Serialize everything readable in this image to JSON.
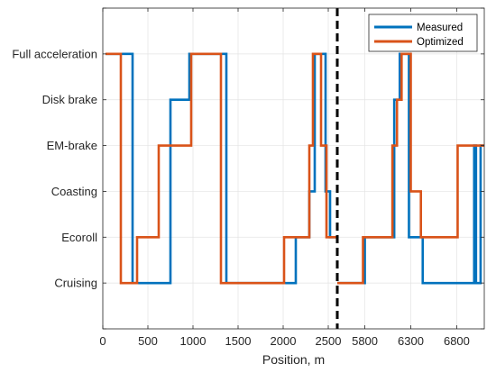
{
  "chart_data": {
    "type": "line",
    "style": "step",
    "xlabel": "Position, m",
    "ylabel": "",
    "grid": true,
    "legend_position": "top-right",
    "x_axis_break": {
      "at_data": 2600,
      "style": "dashed-vertical-line",
      "color": "#000000",
      "resumes_at_data": 5500,
      "resumes_tick_value": 5800
    },
    "xticks": [
      "0",
      "500",
      "1000",
      "1500",
      "2000",
      "2500",
      "5800",
      "6300",
      "6800"
    ],
    "ycategories": [
      "Cruising",
      "Ecoroll",
      "Coasting",
      "EM-brake",
      "Disk brake",
      "Full acceleration"
    ],
    "ylim": [
      -1,
      6
    ],
    "segments": [
      {
        "xlim": [
          0,
          2600
        ]
      },
      {
        "xlim": [
          5500,
          7100
        ]
      }
    ],
    "series": [
      {
        "name": "Measured",
        "color": "#0072BD",
        "points": [
          [
            30,
            5
          ],
          [
            330,
            5
          ],
          [
            330,
            0
          ],
          [
            750,
            0
          ],
          [
            750,
            4
          ],
          [
            960,
            4
          ],
          [
            960,
            5
          ],
          [
            1370,
            5
          ],
          [
            1370,
            0
          ],
          [
            2140,
            0
          ],
          [
            2140,
            1
          ],
          [
            2290,
            1
          ],
          [
            2290,
            2
          ],
          [
            2350,
            2
          ],
          [
            2350,
            5
          ],
          [
            2470,
            5
          ],
          [
            2470,
            2
          ],
          [
            2520,
            2
          ],
          [
            2520,
            1
          ],
          [
            2600,
            1
          ],
          [
            5500,
            0
          ],
          [
            5800,
            0
          ],
          [
            5800,
            1
          ],
          [
            6120,
            1
          ],
          [
            6120,
            4
          ],
          [
            6180,
            4
          ],
          [
            6180,
            5
          ],
          [
            6280,
            5
          ],
          [
            6280,
            1
          ],
          [
            6430,
            1
          ],
          [
            6430,
            0
          ],
          [
            6990,
            0
          ],
          [
            6990,
            3
          ],
          [
            7010,
            3
          ],
          [
            7010,
            0
          ],
          [
            7060,
            0
          ],
          [
            7060,
            3
          ],
          [
            7100,
            3
          ]
        ]
      },
      {
        "name": "Optimized",
        "color": "#D95319",
        "points": [
          [
            30,
            5
          ],
          [
            200,
            5
          ],
          [
            200,
            0
          ],
          [
            380,
            0
          ],
          [
            380,
            1
          ],
          [
            620,
            1
          ],
          [
            620,
            3
          ],
          [
            980,
            3
          ],
          [
            980,
            5
          ],
          [
            1310,
            5
          ],
          [
            1310,
            0
          ],
          [
            2010,
            0
          ],
          [
            2010,
            1
          ],
          [
            2290,
            1
          ],
          [
            2290,
            3
          ],
          [
            2330,
            3
          ],
          [
            2330,
            5
          ],
          [
            2420,
            5
          ],
          [
            2420,
            3
          ],
          [
            2480,
            3
          ],
          [
            2480,
            1
          ],
          [
            2600,
            1
          ],
          [
            5500,
            0
          ],
          [
            5780,
            0
          ],
          [
            5780,
            1
          ],
          [
            6100,
            1
          ],
          [
            6100,
            3
          ],
          [
            6150,
            3
          ],
          [
            6150,
            4
          ],
          [
            6200,
            4
          ],
          [
            6200,
            5
          ],
          [
            6300,
            5
          ],
          [
            6300,
            2
          ],
          [
            6410,
            2
          ],
          [
            6410,
            1
          ],
          [
            6810,
            1
          ],
          [
            6810,
            3
          ],
          [
            7100,
            3
          ]
        ]
      }
    ]
  }
}
